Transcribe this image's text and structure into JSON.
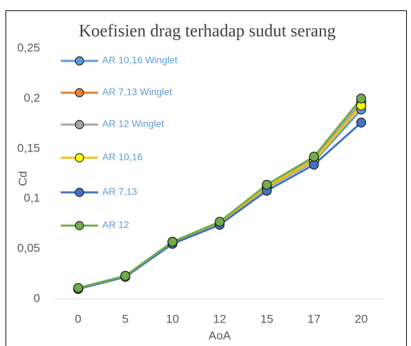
{
  "chart_data": {
    "type": "line",
    "title": "Koefisien drag terhadap sudut serang",
    "x_label": "AoA",
    "y_label": "Cd",
    "categories": [
      "0",
      "5",
      "10",
      "12",
      "15",
      "17",
      "20"
    ],
    "ylim": [
      0,
      0.25
    ],
    "yticks": [
      0,
      {
        "value": 0.05,
        "label": "0,05"
      },
      {
        "value": 0.1,
        "label": "0,1"
      },
      {
        "value": 0.15,
        "label": "0,15"
      },
      {
        "value": 0.2,
        "label": "0,2"
      },
      {
        "value": 0.25,
        "label": "0,25"
      }
    ],
    "legend_position": "upper left",
    "series": [
      {
        "name": "AR 10,16 Winglet",
        "color": "#5b9bd5",
        "values": [
          0.01,
          0.023,
          0.057,
          0.076,
          0.111,
          0.137,
          0.189
        ]
      },
      {
        "name": "AR 7,13 Winglet",
        "color": "#ed7d31",
        "values": [
          0.01,
          0.023,
          0.057,
          0.076,
          0.112,
          0.138,
          0.195
        ]
      },
      {
        "name": "AR 12 Winglet",
        "color": "#a5a5a5",
        "values": [
          0.01,
          0.023,
          0.057,
          0.076,
          0.113,
          0.14,
          0.197
        ]
      },
      {
        "name": "AR 10,16",
        "color": "#ffc000",
        "values": [
          0.01,
          0.023,
          0.057,
          0.076,
          0.112,
          0.138,
          0.193
        ]
      },
      {
        "name": "AR 7,13",
        "color": "#4472c4",
        "values": [
          0.01,
          0.022,
          0.055,
          0.074,
          0.108,
          0.134,
          0.176
        ]
      },
      {
        "name": "AR 12",
        "color": "#70ad47",
        "values": [
          0.011,
          0.023,
          0.057,
          0.077,
          0.114,
          0.142,
          0.2
        ]
      }
    ]
  }
}
